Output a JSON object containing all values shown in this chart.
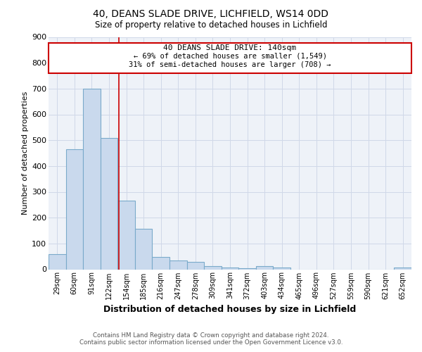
{
  "title1": "40, DEANS SLADE DRIVE, LICHFIELD, WS14 0DD",
  "title2": "Size of property relative to detached houses in Lichfield",
  "xlabel": "Distribution of detached houses by size in Lichfield",
  "ylabel": "Number of detached properties",
  "categories": [
    "29sqm",
    "60sqm",
    "91sqm",
    "122sqm",
    "154sqm",
    "185sqm",
    "216sqm",
    "247sqm",
    "278sqm",
    "309sqm",
    "341sqm",
    "372sqm",
    "403sqm",
    "434sqm",
    "465sqm",
    "496sqm",
    "527sqm",
    "559sqm",
    "590sqm",
    "621sqm",
    "652sqm"
  ],
  "values": [
    60,
    465,
    700,
    510,
    265,
    158,
    47,
    35,
    30,
    13,
    8,
    3,
    12,
    8,
    0,
    0,
    0,
    0,
    0,
    0,
    8
  ],
  "bar_color": "#c9d9ed",
  "bar_edge_color": "#7aaaca",
  "ylim": [
    0,
    900
  ],
  "yticks": [
    0,
    100,
    200,
    300,
    400,
    500,
    600,
    700,
    800,
    900
  ],
  "annotation_line1": "40 DEANS SLADE DRIVE: 140sqm",
  "annotation_line2": "← 69% of detached houses are smaller (1,549)",
  "annotation_line3": "31% of semi-detached houses are larger (708) →",
  "annotation_box_color": "#cc0000",
  "vline_color": "#cc0000",
  "footer1": "Contains HM Land Registry data © Crown copyright and database right 2024.",
  "footer2": "Contains public sector information licensed under the Open Government Licence v3.0.",
  "grid_color": "#d0d8e8",
  "background_color": "#eef2f8"
}
